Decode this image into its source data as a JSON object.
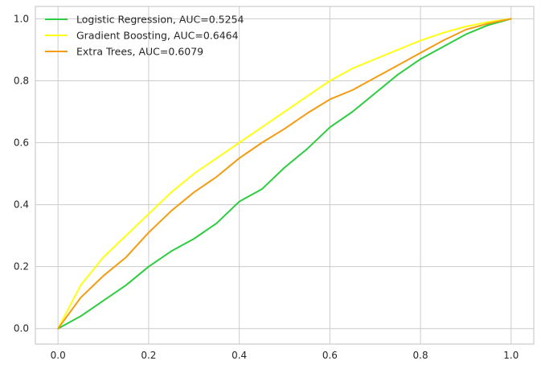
{
  "chart_data": {
    "type": "line",
    "title": "",
    "xlabel": "",
    "ylabel": "",
    "xlim": [
      -0.05,
      1.05
    ],
    "ylim": [
      -0.05,
      1.04
    ],
    "x_ticks": [
      0.0,
      0.2,
      0.4,
      0.6,
      0.8,
      1.0
    ],
    "y_ticks": [
      0.0,
      0.2,
      0.4,
      0.6,
      0.8,
      1.0
    ],
    "x_tick_labels": [
      "0.0",
      "0.2",
      "0.4",
      "0.6",
      "0.8",
      "1.0"
    ],
    "y_tick_labels": [
      "0.0",
      "0.2",
      "0.4",
      "0.6",
      "0.8",
      "1.0"
    ],
    "grid": true,
    "legend_placement": "top-left",
    "series": [
      {
        "name": "Logistic Regression, AUC=0.5254",
        "color": "#2ecc40",
        "x": [
          0.0,
          0.05,
          0.1,
          0.15,
          0.2,
          0.25,
          0.3,
          0.35,
          0.4,
          0.45,
          0.5,
          0.55,
          0.6,
          0.65,
          0.7,
          0.75,
          0.8,
          0.85,
          0.9,
          0.95,
          1.0
        ],
        "y": [
          0.0,
          0.04,
          0.09,
          0.14,
          0.2,
          0.25,
          0.29,
          0.34,
          0.41,
          0.45,
          0.52,
          0.58,
          0.65,
          0.7,
          0.76,
          0.82,
          0.87,
          0.91,
          0.95,
          0.98,
          1.0
        ]
      },
      {
        "name": "Gradient Boosting, AUC=0.6464",
        "color": "#ffff14",
        "x": [
          0.0,
          0.05,
          0.1,
          0.15,
          0.2,
          0.25,
          0.3,
          0.35,
          0.4,
          0.45,
          0.5,
          0.55,
          0.6,
          0.65,
          0.7,
          0.75,
          0.8,
          0.85,
          0.9,
          0.95,
          1.0
        ],
        "y": [
          0.0,
          0.14,
          0.23,
          0.3,
          0.37,
          0.44,
          0.5,
          0.55,
          0.6,
          0.65,
          0.7,
          0.75,
          0.8,
          0.84,
          0.87,
          0.9,
          0.93,
          0.955,
          0.975,
          0.99,
          1.0
        ]
      },
      {
        "name": "Extra Trees, AUC=0.6079",
        "color": "#f39c12",
        "x": [
          0.0,
          0.05,
          0.1,
          0.15,
          0.2,
          0.25,
          0.3,
          0.35,
          0.4,
          0.45,
          0.5,
          0.55,
          0.6,
          0.65,
          0.7,
          0.75,
          0.8,
          0.85,
          0.9,
          0.95,
          1.0
        ],
        "y": [
          0.0,
          0.1,
          0.17,
          0.23,
          0.31,
          0.38,
          0.44,
          0.49,
          0.55,
          0.6,
          0.645,
          0.695,
          0.74,
          0.77,
          0.81,
          0.85,
          0.89,
          0.93,
          0.965,
          0.985,
          1.0
        ]
      }
    ]
  }
}
